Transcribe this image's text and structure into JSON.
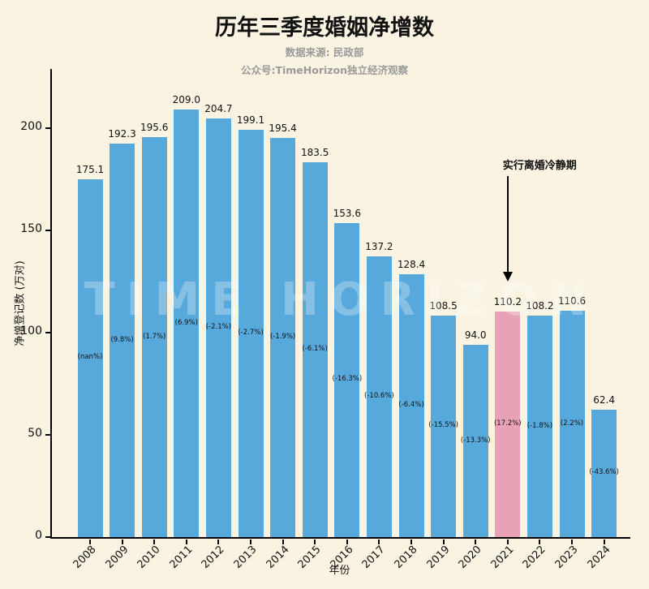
{
  "chart_data": {
    "type": "bar",
    "title": "历年三季度婚姻净增数",
    "subtitle_source": "数据来源: 民政部",
    "subtitle_channel": "公众号:TimeHorizon独立经济观察",
    "xlabel": "年份",
    "ylabel": "净增登记数 (万对)",
    "watermark": "TIME HORIZON",
    "annotation": {
      "text": "实行离婚冷静期",
      "target_year": "2021"
    },
    "categories": [
      "2008",
      "2009",
      "2010",
      "2011",
      "2012",
      "2013",
      "2014",
      "2015",
      "2016",
      "2017",
      "2018",
      "2019",
      "2020",
      "2021",
      "2022",
      "2023",
      "2024"
    ],
    "values": [
      175.1,
      192.3,
      195.6,
      209.0,
      204.7,
      199.1,
      195.4,
      183.5,
      153.6,
      137.2,
      128.4,
      108.5,
      94.0,
      110.2,
      108.2,
      110.6,
      62.4
    ],
    "value_labels": [
      "175.1",
      "192.3",
      "195.6",
      "209.0",
      "204.7",
      "199.1",
      "195.4",
      "183.5",
      "153.6",
      "137.2",
      "128.4",
      "108.5",
      "94.0",
      "110.2",
      "108.2",
      "110.6",
      "62.4"
    ],
    "pct_labels": [
      "(nan%)",
      "(9.8%)",
      "(1.7%)",
      "(6.9%)",
      "(-2.1%)",
      "(-2.7%)",
      "(-1.9%)",
      "(-6.1%)",
      "(-16.3%)",
      "(-10.6%)",
      "(-6.4%)",
      "(-15.5%)",
      "(-13.3%)",
      "(17.2%)",
      "(-1.8%)",
      "(2.2%)",
      "(-43.6%)"
    ],
    "highlight_index": 13,
    "yticks": [
      0,
      50,
      100,
      150,
      200
    ],
    "ylim": [
      0,
      229
    ],
    "colors": {
      "bar": "#58A9DB",
      "highlight": "#E9A2B5",
      "background": "#FAF3E2",
      "subtitle": "#9A9A9A"
    }
  }
}
